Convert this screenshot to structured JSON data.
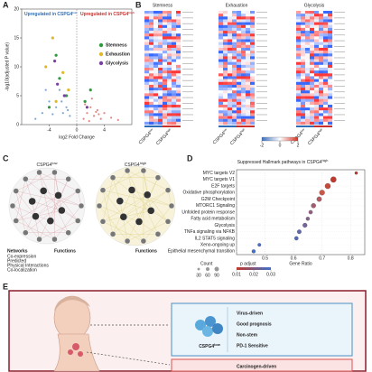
{
  "panel_labels": [
    "A",
    "B",
    "C",
    "D",
    "E"
  ],
  "chart_data": [
    {
      "type": "scatter",
      "annotations": [
        {
          "main": "Upregulated in CSPG4",
          "sup": "low",
          "color": "#2e6db5"
        },
        {
          "main": "Upregulated in CSPG4",
          "sup": "high",
          "color": "#c9302c"
        }
      ],
      "xlabel": "log2 Fold Change",
      "ylabel": "-log10(adjusted P value)",
      "xlim": [
        -8,
        8
      ],
      "xticks": [
        -4,
        0,
        4
      ],
      "ylim": [
        0,
        20
      ],
      "yticks": [
        0,
        5,
        10,
        15,
        20
      ],
      "legend": "right",
      "series": [
        {
          "color": "#4a7fc1",
          "x": [
            -5,
            -4,
            -3,
            -2.5,
            -2,
            -1.5,
            -1,
            -6,
            -3.5,
            -4.5,
            -2.2,
            -1.3
          ],
          "values": [
            2,
            4,
            3,
            6,
            2,
            3,
            1.5,
            1,
            1.8,
            6,
            4,
            2.5
          ]
        },
        {
          "color": "#d9534f",
          "x": [
            1,
            1.5,
            2,
            2.5,
            3,
            3.5,
            4,
            5,
            1.2,
            2.2,
            3.2,
            6,
            1.8,
            2.8
          ],
          "values": [
            1,
            2,
            3,
            1.5,
            2.5,
            1,
            2,
            1.2,
            3.5,
            4.5,
            1.8,
            0.8,
            0.6,
            2.2
          ]
        },
        {
          "name": "Stemness",
          "color": "#2e9b3e",
          "x": [
            -2.5,
            -3,
            -1.5,
            1.2,
            -4,
            2
          ],
          "values": [
            8,
            12,
            5,
            4,
            3,
            6
          ]
        },
        {
          "name": "Exhaustion",
          "color": "#e0b92a",
          "x": [
            -3.5,
            -2,
            -1.2,
            -4.5,
            -3
          ],
          "values": [
            15,
            9,
            6,
            10,
            4
          ]
        },
        {
          "name": "Glycolysis",
          "color": "#7b3fa0",
          "x": [
            -2.8,
            -1.8,
            -3.2,
            1.5
          ],
          "values": [
            7,
            5,
            11,
            3
          ]
        }
      ]
    },
    {
      "type": "heatmap",
      "panels": [
        "Stemness",
        "Exhaustion",
        "Glycolysis"
      ],
      "column_groups": [
        {
          "main": "CSPG4",
          "sup": "low"
        },
        {
          "main": "CSPG4",
          "sup": "high"
        }
      ],
      "colorbar_ticks": [
        -2,
        0,
        2
      ]
    },
    {
      "type": "dot",
      "title": {
        "main": "Suppressed Hallmark pathways in CSPG4",
        "sup": "high"
      },
      "categories": [
        "MYC targets V2",
        "MYC targets V1",
        "E2F targets",
        "Oxidative phosphorylation",
        "G2M Checkpoint",
        "MTORC1 Signaling",
        "Unfolded protein response",
        "Fatty acid metabolism",
        "Glycolysis",
        "TNFa signaling via NFKB",
        "IL2 STAT5 signaling",
        "Xeno-ongoing up",
        "Epithelial mesenchymal transition"
      ],
      "values": [
        0.82,
        0.74,
        0.72,
        0.7,
        0.69,
        0.67,
        0.66,
        0.65,
        0.64,
        0.62,
        0.61,
        0.48,
        0.46
      ],
      "sizes": [
        40,
        150,
        140,
        130,
        110,
        100,
        70,
        60,
        90,
        80,
        70,
        50,
        60
      ],
      "colors": [
        "#c0392b",
        "#c0392b",
        "#c44a3a",
        "#c8584a",
        "#b45a62",
        "#a45c70",
        "#945f80",
        "#84628e",
        "#74659c",
        "#6468aa",
        "#546bb8",
        "#4a6ec2",
        "#3f72cc"
      ],
      "xlabel": "Gene Ratio",
      "xlim": [
        0.4,
        0.85
      ],
      "xticks": [
        0.5,
        0.6,
        0.7,
        0.8
      ],
      "size_legend": {
        "title": "Count",
        "values": [
          30,
          60,
          90
        ]
      },
      "color_legend": {
        "title": "p adjust",
        "ticks": [
          0.01,
          0.02,
          0.03
        ]
      }
    }
  ],
  "network": {
    "titles": [
      {
        "main": "CSPG4",
        "sup": "low"
      },
      {
        "main": "CSPG4",
        "sup": "high"
      }
    ],
    "legend_title": "Networks",
    "legend_items": [
      "Co-expression",
      "Predicted",
      "Physical Interactions",
      "Co-localization"
    ],
    "functions_title": "Functions"
  },
  "diagram": {
    "box1": {
      "label": {
        "main": "CSPG4",
        "sup": "low"
      },
      "lines": [
        "Virus-driven",
        "Good prognosis",
        "Non-stem",
        "PD-1 Sensitive"
      ]
    },
    "box2": {
      "lines": [
        "Carcinogen-driven"
      ]
    }
  }
}
